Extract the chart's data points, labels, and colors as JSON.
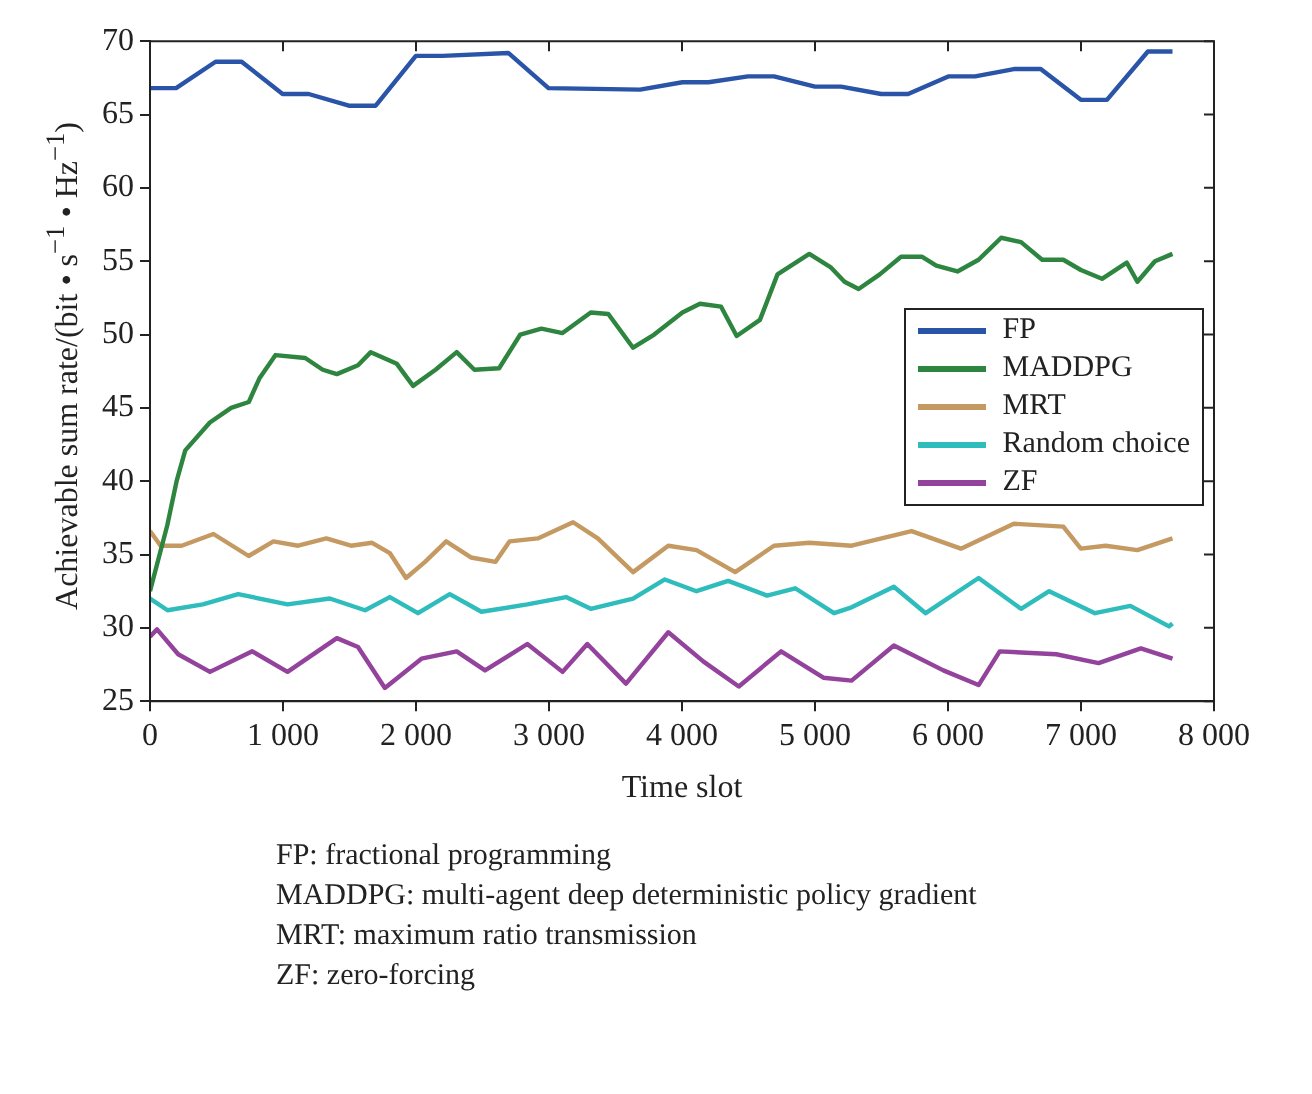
{
  "chart_data": {
    "type": "line",
    "xlabel": "Time slot",
    "ylabel": "Achievable sum rate/(bit • s$^{−1}$ • Hz$^{−1}$)",
    "xlim": [
      0,
      8000
    ],
    "ylim": [
      25,
      70
    ],
    "xticks": [
      0,
      {
        "value": 1000,
        "label": "1 000"
      },
      {
        "value": 2000,
        "label": "2 000"
      },
      {
        "value": 3000,
        "label": "3 000"
      },
      {
        "value": 4000,
        "label": "4 000"
      },
      {
        "value": 5000,
        "label": "5 000"
      },
      {
        "value": 6000,
        "label": "6 000"
      },
      {
        "value": 7000,
        "label": "7 000"
      },
      {
        "value": 8000,
        "label": "8 000"
      }
    ],
    "yticks": [
      25,
      30,
      35,
      40,
      45,
      50,
      55,
      60,
      65,
      70
    ],
    "legend": "right",
    "marker": "none",
    "line_style": "solid",
    "series": [
      {
        "name": "FP",
        "color": "#2a54a8",
        "x": [
          0,
          196,
          493,
          689,
          997,
          1193,
          1495,
          1697,
          1999,
          2200,
          2694,
          2996,
          3685,
          4003,
          4199,
          4496,
          4692,
          5000,
          5196,
          5498,
          5700,
          6002,
          6204,
          6495,
          6697,
          6999,
          7195,
          7503,
          7688
        ],
        "values": [
          66.8,
          66.8,
          68.6,
          68.6,
          66.4,
          66.4,
          65.6,
          65.6,
          69.0,
          69.0,
          69.2,
          66.8,
          66.7,
          67.2,
          67.2,
          67.6,
          67.6,
          66.9,
          66.9,
          66.4,
          66.4,
          67.6,
          67.6,
          68.1,
          68.1,
          66.0,
          66.0,
          69.3,
          69.3
        ]
      },
      {
        "name": "MADDPG",
        "color": "#2e8540",
        "x": [
          0,
          130,
          200,
          265,
          450,
          610,
          743,
          822,
          944,
          1167,
          1299,
          1405,
          1564,
          1660,
          1856,
          1978,
          2147,
          2306,
          2439,
          2625,
          2784,
          2943,
          3102,
          3314,
          3446,
          3632,
          3791,
          4003,
          4135,
          4294,
          4411,
          4586,
          4718,
          4957,
          5116,
          5222,
          5328,
          5487,
          5647,
          5806,
          5912,
          6071,
          6230,
          6400,
          6549,
          6708,
          6867,
          6999,
          7158,
          7344,
          7424,
          7556,
          7688
        ],
        "values": [
          32.5,
          37,
          40,
          42.1,
          44,
          45,
          45.4,
          47,
          48.6,
          48.4,
          47.6,
          47.3,
          47.9,
          48.8,
          48,
          46.5,
          47.6,
          48.8,
          47.6,
          47.7,
          50,
          50.4,
          50.1,
          51.5,
          51.4,
          49.1,
          50,
          51.5,
          52.1,
          51.9,
          49.9,
          51,
          54.1,
          55.5,
          54.6,
          53.6,
          53.1,
          54.1,
          55.3,
          55.3,
          54.7,
          54.3,
          55.1,
          56.6,
          56.3,
          55.1,
          55.1,
          54.4,
          53.8,
          54.9,
          53.6,
          55,
          55.5
        ]
      },
      {
        "name": "MRT",
        "color": "#c49a62",
        "x": [
          0,
          80,
          238,
          477,
          742,
          928,
          1114,
          1326,
          1511,
          1670,
          1803,
          1925,
          2068,
          2227,
          2413,
          2598,
          2704,
          2916,
          3181,
          3367,
          3632,
          3897,
          4109,
          4400,
          4692,
          4957,
          5275,
          5726,
          6097,
          6495,
          6867,
          6999,
          7185,
          7424,
          7688
        ],
        "values": [
          36.6,
          35.6,
          35.6,
          36.4,
          34.9,
          35.9,
          35.6,
          36.1,
          35.6,
          35.8,
          35.1,
          33.4,
          34.5,
          35.9,
          34.8,
          34.5,
          35.9,
          36.1,
          37.2,
          36.1,
          33.8,
          35.6,
          35.3,
          33.8,
          35.6,
          35.8,
          35.6,
          36.6,
          35.4,
          37.1,
          36.9,
          35.4,
          35.6,
          35.3,
          36.1
        ]
      },
      {
        "name": "Random choice",
        "color": "#2ebcbc",
        "x": [
          0,
          132,
          398,
          663,
          1034,
          1352,
          1617,
          1803,
          2015,
          2254,
          2492,
          2837,
          3128,
          3314,
          3632,
          3871,
          4109,
          4347,
          4639,
          4851,
          5143,
          5275,
          5593,
          5832,
          6230,
          6549,
          6761,
          7105,
          7371,
          7662,
          7688
        ],
        "values": [
          32.0,
          31.2,
          31.6,
          32.3,
          31.6,
          32.0,
          31.2,
          32.1,
          31.0,
          32.3,
          31.1,
          31.6,
          32.1,
          31.3,
          32.0,
          33.3,
          32.5,
          33.2,
          32.2,
          32.7,
          31.0,
          31.4,
          32.8,
          31.0,
          33.4,
          31.3,
          32.5,
          31.0,
          31.5,
          30.1,
          30.3
        ]
      },
      {
        "name": "ZF",
        "color": "#93439c",
        "x": [
          0,
          53,
          212,
          451,
          769,
          1034,
          1405,
          1564,
          1766,
          2041,
          2306,
          2519,
          2837,
          3102,
          3288,
          3579,
          3897,
          4162,
          4427,
          4745,
          5063,
          5275,
          5593,
          5965,
          6230,
          6389,
          6814,
          7132,
          7450,
          7688
        ],
        "values": [
          29.4,
          29.9,
          28.2,
          27.0,
          28.4,
          27.0,
          29.3,
          28.7,
          25.9,
          27.9,
          28.4,
          27.1,
          28.9,
          27.0,
          28.9,
          26.2,
          29.7,
          27.7,
          26.0,
          28.4,
          26.6,
          26.4,
          28.8,
          27.1,
          26.1,
          28.4,
          28.2,
          27.6,
          28.6,
          27.9
        ]
      }
    ],
    "annotations": [
      "FP: fractional programming",
      "MADDPG: multi-agent deep deterministic policy gradient",
      "MRT: maximum ratio transmission",
      "ZF: zero-forcing"
    ]
  }
}
